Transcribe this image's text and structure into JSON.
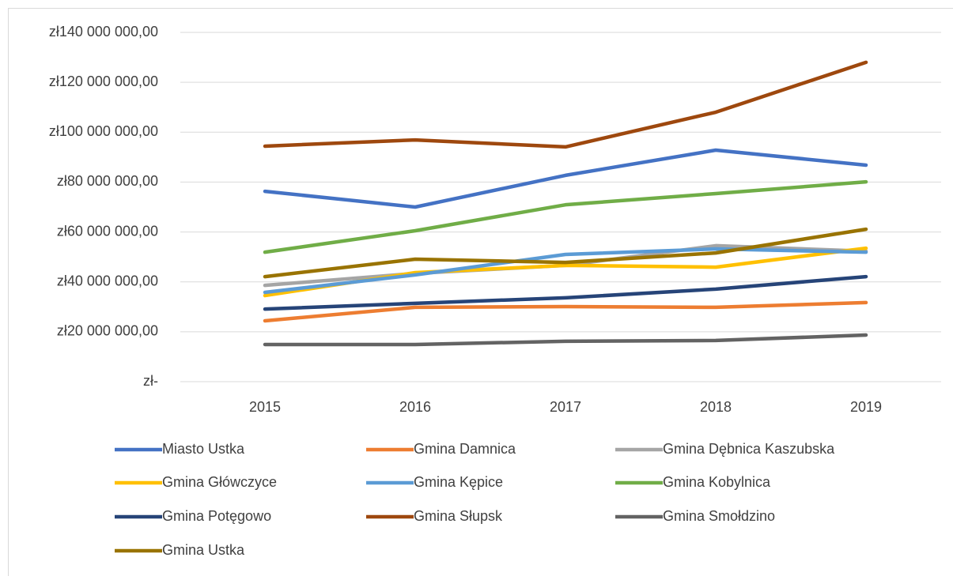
{
  "chart_data": {
    "type": "line",
    "categories": [
      "2015",
      "2016",
      "2017",
      "2018",
      "2019"
    ],
    "series": [
      {
        "name": "Miasto Ustka",
        "color": "#4472c4",
        "values": [
          76300000,
          70000000,
          82700000,
          92800000,
          86800000
        ]
      },
      {
        "name": "Gmina Damnica",
        "color": "#ed7d31",
        "values": [
          24400000,
          29800000,
          30100000,
          29800000,
          31700000
        ]
      },
      {
        "name": "Gmina Dębnica Kaszubska",
        "color": "#a5a5a5",
        "values": [
          38600000,
          43400000,
          46600000,
          54500000,
          52300000
        ]
      },
      {
        "name": "Gmina Główczyce",
        "color": "#ffc000",
        "values": [
          34500000,
          43700000,
          46600000,
          45900000,
          53500000
        ]
      },
      {
        "name": "Gmina Kępice",
        "color": "#5b9bd5",
        "values": [
          35800000,
          42800000,
          51000000,
          53200000,
          51900000
        ]
      },
      {
        "name": "Gmina Kobylnica",
        "color": "#70ad47",
        "values": [
          51900000,
          60500000,
          70900000,
          75400000,
          80100000
        ]
      },
      {
        "name": "Gmina Potęgowo",
        "color": "#264478",
        "values": [
          29100000,
          31400000,
          33600000,
          37100000,
          42100000
        ]
      },
      {
        "name": "Gmina Słupsk",
        "color": "#9e480e",
        "values": [
          94400000,
          96900000,
          94100000,
          108000000,
          128000000
        ]
      },
      {
        "name": "Gmina Smołdzino",
        "color": "#636363",
        "values": [
          14900000,
          14900000,
          16200000,
          16500000,
          18700000
        ]
      },
      {
        "name": "Gmina Ustka",
        "color": "#997300",
        "values": [
          42100000,
          49100000,
          47800000,
          51600000,
          61100000
        ]
      }
    ],
    "ylim": [
      0,
      140000000
    ],
    "yticks": [
      {
        "value": 0,
        "label": "zł-"
      },
      {
        "value": 20000000,
        "label": "zł20 000 000,00"
      },
      {
        "value": 40000000,
        "label": "zł40 000 000,00"
      },
      {
        "value": 60000000,
        "label": "zł60 000 000,00"
      },
      {
        "value": 80000000,
        "label": "zł80 000 000,00"
      },
      {
        "value": 100000000,
        "label": "zł100 000 000,00"
      },
      {
        "value": 120000000,
        "label": "zł120 000 000,00"
      },
      {
        "value": 140000000,
        "label": "zł140 000 000,00"
      }
    ],
    "grid": true
  }
}
